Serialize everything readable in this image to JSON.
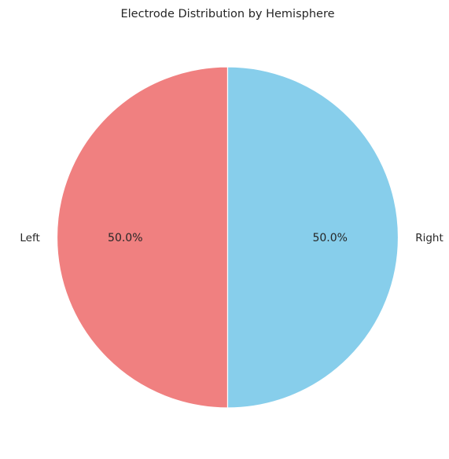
{
  "chart_data": {
    "type": "pie",
    "title": "Electrode Distribution by Hemisphere",
    "slices": [
      {
        "label": "Left",
        "value": 50.0,
        "pct_label": "50.0%",
        "color": "#F08080"
      },
      {
        "label": "Right",
        "value": 50.0,
        "pct_label": "50.0%",
        "color": "#87CEEB"
      }
    ],
    "start_angle_deg": 90,
    "direction": "counterclockwise",
    "edge_color": "#ffffff"
  }
}
